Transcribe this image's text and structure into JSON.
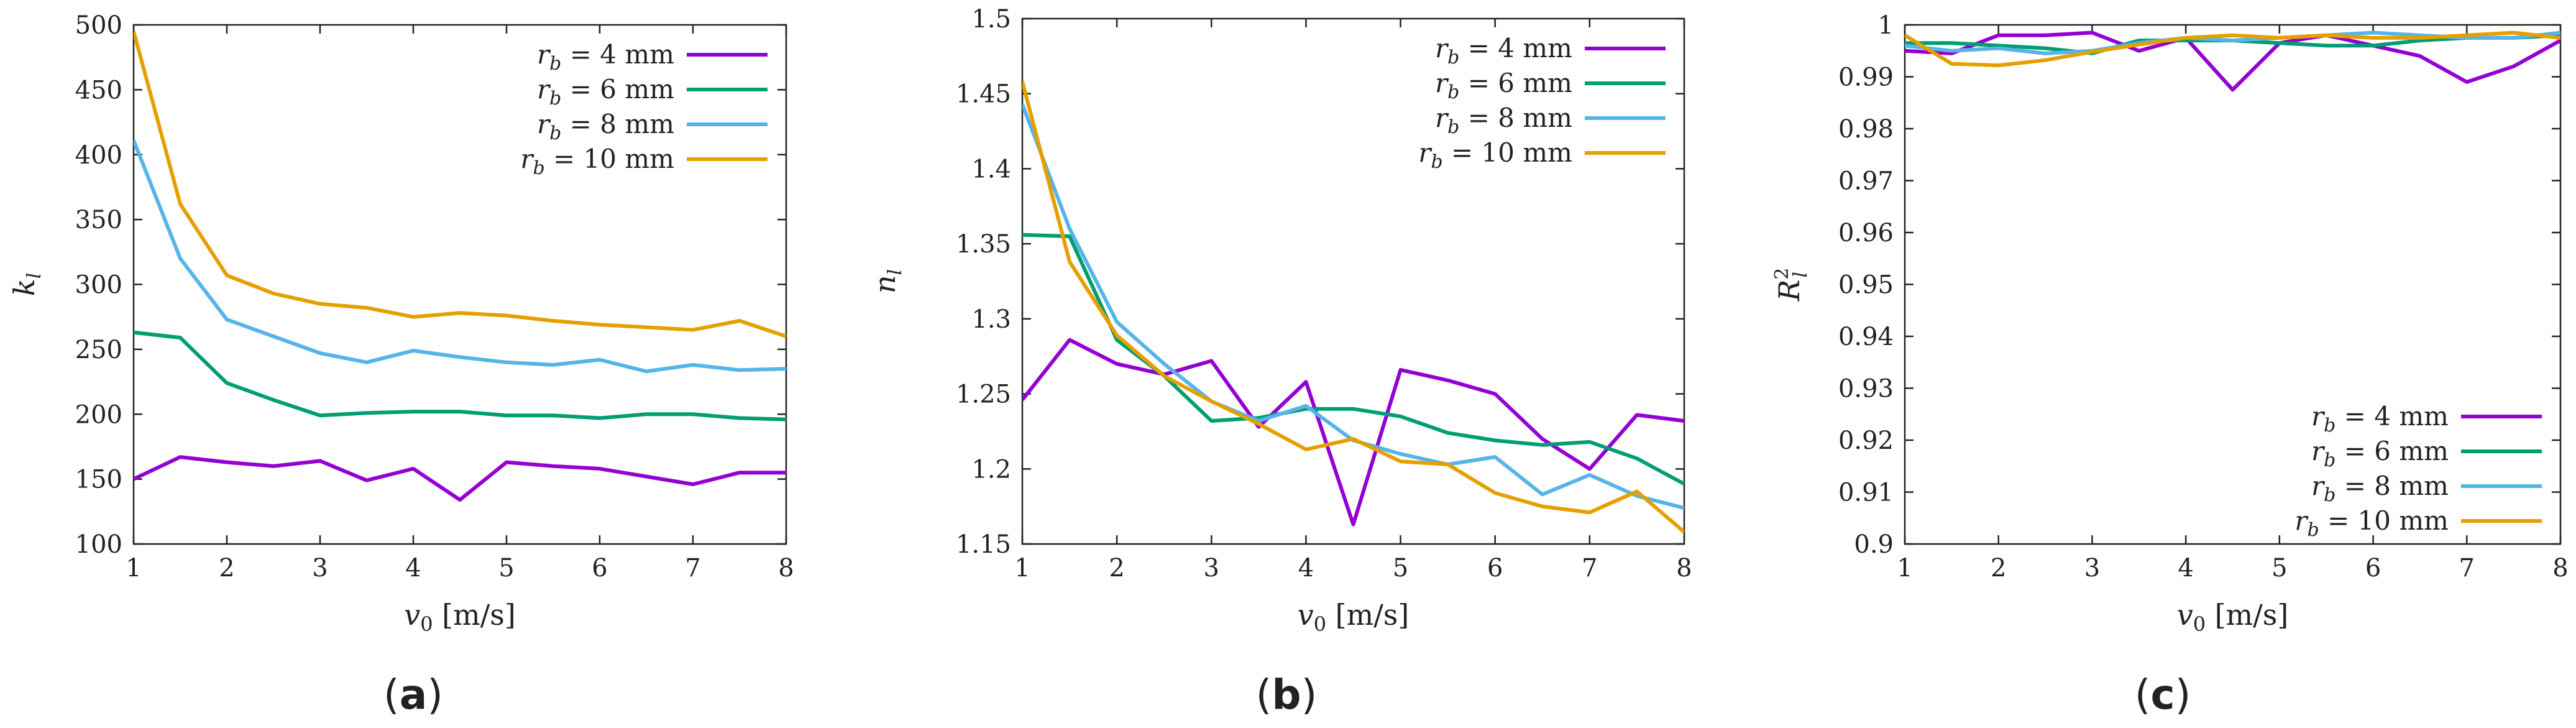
{
  "chart_data": [
    {
      "type": "line",
      "panel_label": "(a)",
      "xlabel": "v0 [m/s]",
      "xlabel_main": "v",
      "xlabel_sub": "0",
      "xlabel_unit": " [m/s]",
      "ylabel": "kl",
      "ylabel_main": "k",
      "ylabel_sub": "l",
      "ylabel_sup": "",
      "xlim": [
        1,
        8
      ],
      "ylim": [
        100,
        500
      ],
      "xticks": [
        1,
        2,
        3,
        4,
        5,
        6,
        7,
        8
      ],
      "yticks": [
        100,
        150,
        200,
        250,
        300,
        350,
        400,
        450,
        500
      ],
      "legend_position": "top-right",
      "x": [
        1,
        1.5,
        2,
        2.5,
        3,
        3.5,
        4,
        4.5,
        5,
        5.5,
        6,
        6.5,
        7,
        7.5,
        8
      ],
      "series": [
        {
          "name": "rb = 4 mm",
          "label_pre": "r",
          "label_sub": "b",
          "label_post": " = 4 mm",
          "color": "#9400d3",
          "values": [
            150,
            167,
            163,
            160,
            164,
            149,
            158,
            134,
            163,
            160,
            158,
            152,
            146,
            155,
            155
          ]
        },
        {
          "name": "rb = 6 mm",
          "label_pre": "r",
          "label_sub": "b",
          "label_post": " = 6 mm",
          "color": "#009e73",
          "values": [
            263,
            259,
            224,
            211,
            199,
            201,
            202,
            202,
            199,
            199,
            197,
            200,
            200,
            197,
            196
          ]
        },
        {
          "name": "rb = 8 mm",
          "label_pre": "r",
          "label_sub": "b",
          "label_post": " = 8 mm",
          "color": "#56b4e9",
          "values": [
            411,
            320,
            273,
            260,
            247,
            240,
            249,
            244,
            240,
            238,
            242,
            233,
            238,
            234,
            235
          ]
        },
        {
          "name": "rb = 10 mm",
          "label_pre": "r",
          "label_sub": "b",
          "label_post": " = 10 mm",
          "color": "#e69f00",
          "values": [
            495,
            362,
            307,
            293,
            285,
            282,
            275,
            278,
            276,
            272,
            269,
            267,
            265,
            272,
            260
          ]
        }
      ]
    },
    {
      "type": "line",
      "panel_label": "(b)",
      "xlabel": "v0 [m/s]",
      "xlabel_main": "v",
      "xlabel_sub": "0",
      "xlabel_unit": " [m/s]",
      "ylabel": "nl",
      "ylabel_main": "n",
      "ylabel_sub": "l",
      "ylabel_sup": "",
      "xlim": [
        1,
        8
      ],
      "ylim": [
        1.15,
        1.5
      ],
      "xticks": [
        1,
        2,
        3,
        4,
        5,
        6,
        7,
        8
      ],
      "yticks": [
        1.15,
        1.2,
        1.25,
        1.3,
        1.35,
        1.4,
        1.45,
        1.5
      ],
      "legend_position": "top-right",
      "x": [
        1,
        1.5,
        2,
        2.5,
        3,
        3.5,
        4,
        4.5,
        5,
        5.5,
        6,
        6.5,
        7,
        7.5,
        8
      ],
      "series": [
        {
          "name": "rb = 4 mm",
          "label_pre": "r",
          "label_sub": "b",
          "label_post": " = 4 mm",
          "color": "#9400d3",
          "values": [
            1.246,
            1.286,
            1.27,
            1.263,
            1.272,
            1.228,
            1.258,
            1.163,
            1.266,
            1.259,
            1.25,
            1.22,
            1.2,
            1.236,
            1.232
          ]
        },
        {
          "name": "rb = 6 mm",
          "label_pre": "r",
          "label_sub": "b",
          "label_post": " = 6 mm",
          "color": "#009e73",
          "values": [
            1.356,
            1.355,
            1.286,
            1.262,
            1.232,
            1.234,
            1.24,
            1.24,
            1.235,
            1.224,
            1.219,
            1.216,
            1.218,
            1.207,
            1.19
          ]
        },
        {
          "name": "rb = 8 mm",
          "label_pre": "r",
          "label_sub": "b",
          "label_post": " = 8 mm",
          "color": "#56b4e9",
          "values": [
            1.443,
            1.36,
            1.298,
            1.27,
            1.245,
            1.232,
            1.242,
            1.219,
            1.21,
            1.203,
            1.208,
            1.183,
            1.196,
            1.182,
            1.174
          ]
        },
        {
          "name": "rb = 10 mm",
          "label_pre": "r",
          "label_sub": "b",
          "label_post": " = 10 mm",
          "color": "#e69f00",
          "values": [
            1.458,
            1.338,
            1.289,
            1.262,
            1.245,
            1.23,
            1.213,
            1.22,
            1.205,
            1.203,
            1.184,
            1.175,
            1.171,
            1.185,
            1.158
          ]
        }
      ]
    },
    {
      "type": "line",
      "panel_label": "(c)",
      "xlabel": "v0 [m/s]",
      "xlabel_main": "v",
      "xlabel_sub": "0",
      "xlabel_unit": " [m/s]",
      "ylabel": "Rl2",
      "ylabel_main": "R",
      "ylabel_sub": "l",
      "ylabel_sup": "2",
      "xlim": [
        1,
        8
      ],
      "ylim": [
        0.9,
        1
      ],
      "xticks": [
        1,
        2,
        3,
        4,
        5,
        6,
        7,
        8
      ],
      "yticks": [
        0.9,
        0.91,
        0.92,
        0.93,
        0.94,
        0.95,
        0.96,
        0.97,
        0.98,
        0.99,
        1
      ],
      "ytick_labels": [
        "0.9",
        "0.91",
        "0.92",
        "0.93",
        "0.94",
        "0.95",
        "0.96",
        "0.97",
        "0.98",
        "0.99",
        "1"
      ],
      "legend_position": "bottom-right",
      "x": [
        1,
        1.5,
        2,
        2.5,
        3,
        3.5,
        4,
        4.5,
        5,
        5.5,
        6,
        6.5,
        7,
        7.5,
        8
      ],
      "series": [
        {
          "name": "rb = 4 mm",
          "label_pre": "r",
          "label_sub": "b",
          "label_post": " = 4 mm",
          "color": "#9400d3",
          "values": [
            0.995,
            0.9945,
            0.998,
            0.998,
            0.9985,
            0.995,
            0.9975,
            0.9875,
            0.9965,
            0.998,
            0.996,
            0.994,
            0.989,
            0.992,
            0.997
          ]
        },
        {
          "name": "rb = 6 mm",
          "label_pre": "r",
          "label_sub": "b",
          "label_post": " = 6 mm",
          "color": "#009e73",
          "values": [
            0.9965,
            0.9965,
            0.996,
            0.9955,
            0.9945,
            0.997,
            0.997,
            0.997,
            0.9965,
            0.996,
            0.996,
            0.997,
            0.9975,
            0.9975,
            0.998
          ]
        },
        {
          "name": "rb = 8 mm",
          "label_pre": "r",
          "label_sub": "b",
          "label_post": " = 8 mm",
          "color": "#56b4e9",
          "values": [
            0.996,
            0.995,
            0.9955,
            0.9945,
            0.995,
            0.9965,
            0.9975,
            0.997,
            0.9975,
            0.998,
            0.9985,
            0.998,
            0.9975,
            0.9975,
            0.9985
          ]
        },
        {
          "name": "rb = 10 mm",
          "label_pre": "r",
          "label_sub": "b",
          "label_post": " = 10 mm",
          "color": "#e69f00",
          "values": [
            0.998,
            0.9925,
            0.9922,
            0.9932,
            0.9948,
            0.9962,
            0.9975,
            0.998,
            0.9975,
            0.998,
            0.9975,
            0.9975,
            0.998,
            0.9985,
            0.9975
          ]
        }
      ]
    }
  ]
}
